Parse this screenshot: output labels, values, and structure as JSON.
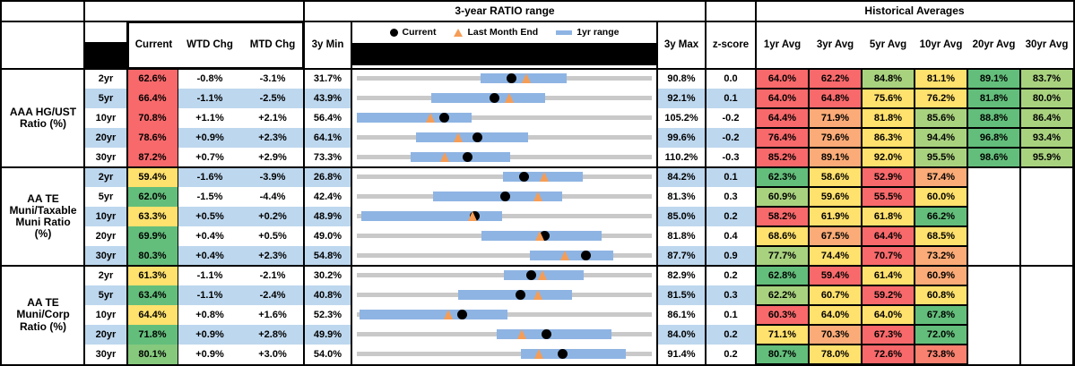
{
  "header": {
    "chart_title": "3-year RATIO range",
    "averages_title": "Historical Averages",
    "col_current": "Current",
    "col_wtd": "WTD Chg",
    "col_mtd": "MTD Chg",
    "col_3y_min": "3y Min",
    "col_3y_max": "3y Max",
    "col_zscore": "z-score",
    "avg_cols": [
      "1yr Avg",
      "3yr Avg",
      "5yr Avg",
      "10yr Avg",
      "20yr Avg",
      "30yr Avg"
    ],
    "legend": {
      "current": "Current",
      "last_month_end": "Last Month End",
      "one_yr_range": "1yr range"
    }
  },
  "palette": {
    "band_blue": "#BDD7EE",
    "white": "#FFFFFF",
    "red": "#F8696B",
    "salmon": "#F8816F",
    "orange": "#FBAB77",
    "yellow": "#FFE16D",
    "lightgreen": "#A9D27F",
    "green": "#63BE7B",
    "green2": "#86C97D",
    "track_gray": "#C9C9C9",
    "range_blue": "#8EB4E3",
    "dot_black": "#000000",
    "triangle_orange": "#F59D56"
  },
  "chart_data": {
    "type": "table",
    "note": "Each row's gray track spans 3y Min to 3y Max; blue bar = 1yr range (estimated endpoints); black dot = Current; orange triangle = Last Month End.",
    "groups": [
      {
        "label": "AAA HG/UST Ratio (%)",
        "label_lines": [
          "AAA HG/UST",
          "Ratio (%)"
        ],
        "rows": [
          {
            "tenor": "2yr",
            "current": "62.6%",
            "current_color": "red",
            "wtd": "-0.8%",
            "mtd": "-3.1%",
            "min3y": "31.7%",
            "max3y": "90.8%",
            "z": "0.0",
            "range": {
              "min": 31.7,
              "max": 90.8,
              "cur": 62.6,
              "lme": 65.7,
              "bar1yr": [
                56.5,
                73.7
              ]
            },
            "avgs": [
              {
                "v": "64.0%",
                "c": "red"
              },
              {
                "v": "62.2%",
                "c": "red"
              },
              {
                "v": "84.8%",
                "c": "lightgreen"
              },
              {
                "v": "81.1%",
                "c": "yellow"
              },
              {
                "v": "89.1%",
                "c": "green"
              },
              {
                "v": "83.7%",
                "c": "lightgreen"
              }
            ]
          },
          {
            "tenor": "5yr",
            "current": "66.4%",
            "current_color": "red",
            "wtd": "-1.1%",
            "mtd": "-2.5%",
            "min3y": "43.9%",
            "max3y": "92.1%",
            "z": "0.1",
            "range": {
              "min": 43.9,
              "max": 92.1,
              "cur": 66.4,
              "lme": 68.9,
              "bar1yr": [
                56.0,
                74.7
              ]
            },
            "avgs": [
              {
                "v": "64.0%",
                "c": "red"
              },
              {
                "v": "64.8%",
                "c": "red"
              },
              {
                "v": "75.6%",
                "c": "yellow"
              },
              {
                "v": "76.2%",
                "c": "yellow"
              },
              {
                "v": "81.8%",
                "c": "green"
              },
              {
                "v": "80.0%",
                "c": "lightgreen"
              }
            ]
          },
          {
            "tenor": "10yr",
            "current": "70.8%",
            "current_color": "red",
            "wtd": "+1.1%",
            "mtd": "+2.1%",
            "min3y": "56.4%",
            "max3y": "105.2%",
            "z": "-0.2",
            "range": {
              "min": 56.4,
              "max": 105.2,
              "cur": 70.8,
              "lme": 68.7,
              "bar1yr": [
                56.4,
                75.4
              ]
            },
            "avgs": [
              {
                "v": "64.4%",
                "c": "red"
              },
              {
                "v": "71.9%",
                "c": "orange"
              },
              {
                "v": "81.8%",
                "c": "yellow"
              },
              {
                "v": "85.6%",
                "c": "lightgreen"
              },
              {
                "v": "88.8%",
                "c": "green"
              },
              {
                "v": "86.4%",
                "c": "lightgreen"
              }
            ]
          },
          {
            "tenor": "20yr",
            "current": "78.6%",
            "current_color": "red",
            "wtd": "+0.9%",
            "mtd": "+2.3%",
            "min3y": "64.1%",
            "max3y": "99.6%",
            "z": "-0.2",
            "range": {
              "min": 64.1,
              "max": 99.6,
              "cur": 78.6,
              "lme": 76.3,
              "bar1yr": [
                71.2,
                84.7
              ]
            },
            "avgs": [
              {
                "v": "76.4%",
                "c": "red"
              },
              {
                "v": "79.6%",
                "c": "orange"
              },
              {
                "v": "86.3%",
                "c": "yellow"
              },
              {
                "v": "94.4%",
                "c": "lightgreen"
              },
              {
                "v": "96.8%",
                "c": "green"
              },
              {
                "v": "93.4%",
                "c": "lightgreen"
              }
            ]
          },
          {
            "tenor": "30yr",
            "current": "87.2%",
            "current_color": "red",
            "wtd": "+0.7%",
            "mtd": "+2.9%",
            "min3y": "73.3%",
            "max3y": "110.2%",
            "z": "-0.3",
            "range": {
              "min": 73.3,
              "max": 110.2,
              "cur": 87.2,
              "lme": 84.3,
              "bar1yr": [
                80.0,
                92.5
              ]
            },
            "avgs": [
              {
                "v": "85.2%",
                "c": "red"
              },
              {
                "v": "89.1%",
                "c": "orange"
              },
              {
                "v": "92.0%",
                "c": "yellow"
              },
              {
                "v": "95.5%",
                "c": "lightgreen"
              },
              {
                "v": "98.6%",
                "c": "green"
              },
              {
                "v": "95.9%",
                "c": "lightgreen"
              }
            ]
          }
        ]
      },
      {
        "label": "AA TE Muni/Taxable Muni Ratio (%)",
        "label_lines": [
          "AA TE",
          "Muni/Taxable",
          "Muni Ratio",
          "(%)"
        ],
        "rows": [
          {
            "tenor": "2yr",
            "current": "59.4%",
            "current_color": "yellow",
            "wtd": "-1.6%",
            "mtd": "-3.9%",
            "min3y": "26.8%",
            "max3y": "84.2%",
            "z": "0.1",
            "range": {
              "min": 26.8,
              "max": 84.2,
              "cur": 59.4,
              "lme": 63.3,
              "bar1yr": [
                55.3,
                70.7
              ]
            },
            "avgs": [
              {
                "v": "62.3%",
                "c": "green"
              },
              {
                "v": "58.6%",
                "c": "yellow"
              },
              {
                "v": "52.9%",
                "c": "red"
              },
              {
                "v": "57.4%",
                "c": "orange"
              },
              {
                "v": "",
                "c": ""
              },
              {
                "v": "",
                "c": ""
              }
            ]
          },
          {
            "tenor": "5yr",
            "current": "62.0%",
            "current_color": "green",
            "wtd": "-1.5%",
            "mtd": "-4.4%",
            "min3y": "42.4%",
            "max3y": "81.3%",
            "z": "0.3",
            "range": {
              "min": 42.4,
              "max": 81.3,
              "cur": 62.0,
              "lme": 66.4,
              "bar1yr": [
                52.4,
                69.5
              ]
            },
            "avgs": [
              {
                "v": "60.9%",
                "c": "lightgreen"
              },
              {
                "v": "59.6%",
                "c": "yellow"
              },
              {
                "v": "55.5%",
                "c": "red"
              },
              {
                "v": "60.0%",
                "c": "yellow"
              },
              {
                "v": "",
                "c": ""
              },
              {
                "v": "",
                "c": ""
              }
            ]
          },
          {
            "tenor": "10yr",
            "current": "63.3%",
            "current_color": "yellow",
            "wtd": "+0.5%",
            "mtd": "+0.2%",
            "min3y": "48.9%",
            "max3y": "85.0%",
            "z": "0.2",
            "range": {
              "min": 48.9,
              "max": 85.0,
              "cur": 63.3,
              "lme": 63.1,
              "bar1yr": [
                49.4,
                66.7
              ]
            },
            "avgs": [
              {
                "v": "58.2%",
                "c": "red"
              },
              {
                "v": "61.9%",
                "c": "yellow"
              },
              {
                "v": "61.8%",
                "c": "yellow"
              },
              {
                "v": "66.2%",
                "c": "green"
              },
              {
                "v": "",
                "c": ""
              },
              {
                "v": "",
                "c": ""
              }
            ]
          },
          {
            "tenor": "20yr",
            "current": "69.9%",
            "current_color": "green",
            "wtd": "+0.4%",
            "mtd": "+0.5%",
            "min3y": "49.0%",
            "max3y": "81.8%",
            "z": "0.4",
            "range": {
              "min": 49.0,
              "max": 81.8,
              "cur": 69.9,
              "lme": 69.4,
              "bar1yr": [
                62.9,
                76.2
              ]
            },
            "avgs": [
              {
                "v": "68.6%",
                "c": "yellow"
              },
              {
                "v": "67.5%",
                "c": "orange"
              },
              {
                "v": "64.4%",
                "c": "red"
              },
              {
                "v": "68.5%",
                "c": "yellow"
              },
              {
                "v": "",
                "c": ""
              },
              {
                "v": "",
                "c": ""
              }
            ]
          },
          {
            "tenor": "30yr",
            "current": "80.3%",
            "current_color": "green",
            "wtd": "+0.4%",
            "mtd": "+2.3%",
            "min3y": "54.8%",
            "max3y": "87.7%",
            "z": "0.9",
            "range": {
              "min": 54.8,
              "max": 87.7,
              "cur": 80.3,
              "lme": 78.0,
              "bar1yr": [
                74.1,
                83.4
              ]
            },
            "avgs": [
              {
                "v": "77.7%",
                "c": "lightgreen"
              },
              {
                "v": "74.4%",
                "c": "yellow"
              },
              {
                "v": "70.7%",
                "c": "red"
              },
              {
                "v": "73.2%",
                "c": "orange"
              },
              {
                "v": "",
                "c": ""
              },
              {
                "v": "",
                "c": ""
              }
            ]
          }
        ]
      },
      {
        "label": "AA TE Muni/Corp Ratio (%)",
        "label_lines": [
          "AA TE",
          "Muni/Corp",
          "Ratio (%)"
        ],
        "rows": [
          {
            "tenor": "2yr",
            "current": "61.3%",
            "current_color": "yellow",
            "wtd": "-1.1%",
            "mtd": "-2.1%",
            "min3y": "30.2%",
            "max3y": "82.9%",
            "z": "0.2",
            "range": {
              "min": 30.2,
              "max": 82.9,
              "cur": 61.3,
              "lme": 63.4,
              "bar1yr": [
                56.4,
                70.8
              ]
            },
            "avgs": [
              {
                "v": "62.8%",
                "c": "green"
              },
              {
                "v": "59.4%",
                "c": "red"
              },
              {
                "v": "61.4%",
                "c": "yellow"
              },
              {
                "v": "60.9%",
                "c": "orange"
              },
              {
                "v": "",
                "c": ""
              },
              {
                "v": "",
                "c": ""
              }
            ]
          },
          {
            "tenor": "5yr",
            "current": "63.4%",
            "current_color": "green",
            "wtd": "-1.1%",
            "mtd": "-2.4%",
            "min3y": "40.8%",
            "max3y": "81.5%",
            "z": "0.3",
            "range": {
              "min": 40.8,
              "max": 81.5,
              "cur": 63.4,
              "lme": 65.8,
              "bar1yr": [
                54.8,
                70.5
              ]
            },
            "avgs": [
              {
                "v": "62.2%",
                "c": "lightgreen"
              },
              {
                "v": "60.7%",
                "c": "yellow"
              },
              {
                "v": "59.2%",
                "c": "red"
              },
              {
                "v": "60.8%",
                "c": "yellow"
              },
              {
                "v": "",
                "c": ""
              },
              {
                "v": "",
                "c": ""
              }
            ]
          },
          {
            "tenor": "10yr",
            "current": "64.4%",
            "current_color": "yellow",
            "wtd": "+0.8%",
            "mtd": "+1.6%",
            "min3y": "52.3%",
            "max3y": "86.1%",
            "z": "0.1",
            "range": {
              "min": 52.3,
              "max": 86.1,
              "cur": 64.4,
              "lme": 62.8,
              "bar1yr": [
                52.6,
                69.6
              ]
            },
            "avgs": [
              {
                "v": "60.3%",
                "c": "red"
              },
              {
                "v": "64.0%",
                "c": "yellow"
              },
              {
                "v": "64.0%",
                "c": "yellow"
              },
              {
                "v": "67.8%",
                "c": "green"
              },
              {
                "v": "",
                "c": ""
              },
              {
                "v": "",
                "c": ""
              }
            ]
          },
          {
            "tenor": "20yr",
            "current": "71.8%",
            "current_color": "green",
            "wtd": "+0.9%",
            "mtd": "+2.8%",
            "min3y": "49.9%",
            "max3y": "84.0%",
            "z": "0.2",
            "range": {
              "min": 49.9,
              "max": 84.0,
              "cur": 71.8,
              "lme": 69.0,
              "bar1yr": [
                66.1,
                79.3
              ]
            },
            "avgs": [
              {
                "v": "71.1%",
                "c": "yellow"
              },
              {
                "v": "70.3%",
                "c": "orange"
              },
              {
                "v": "67.3%",
                "c": "red"
              },
              {
                "v": "72.0%",
                "c": "green"
              },
              {
                "v": "",
                "c": ""
              },
              {
                "v": "",
                "c": ""
              }
            ]
          },
          {
            "tenor": "30yr",
            "current": "80.1%",
            "current_color": "green2",
            "wtd": "+0.9%",
            "mtd": "+3.0%",
            "min3y": "54.0%",
            "max3y": "91.4%",
            "z": "0.2",
            "range": {
              "min": 54.0,
              "max": 91.4,
              "cur": 80.1,
              "lme": 77.1,
              "bar1yr": [
                74.8,
                88.1
              ]
            },
            "avgs": [
              {
                "v": "80.7%",
                "c": "green"
              },
              {
                "v": "78.0%",
                "c": "yellow"
              },
              {
                "v": "72.6%",
                "c": "red"
              },
              {
                "v": "73.8%",
                "c": "salmon"
              },
              {
                "v": "",
                "c": ""
              },
              {
                "v": "",
                "c": ""
              }
            ]
          }
        ]
      }
    ]
  }
}
